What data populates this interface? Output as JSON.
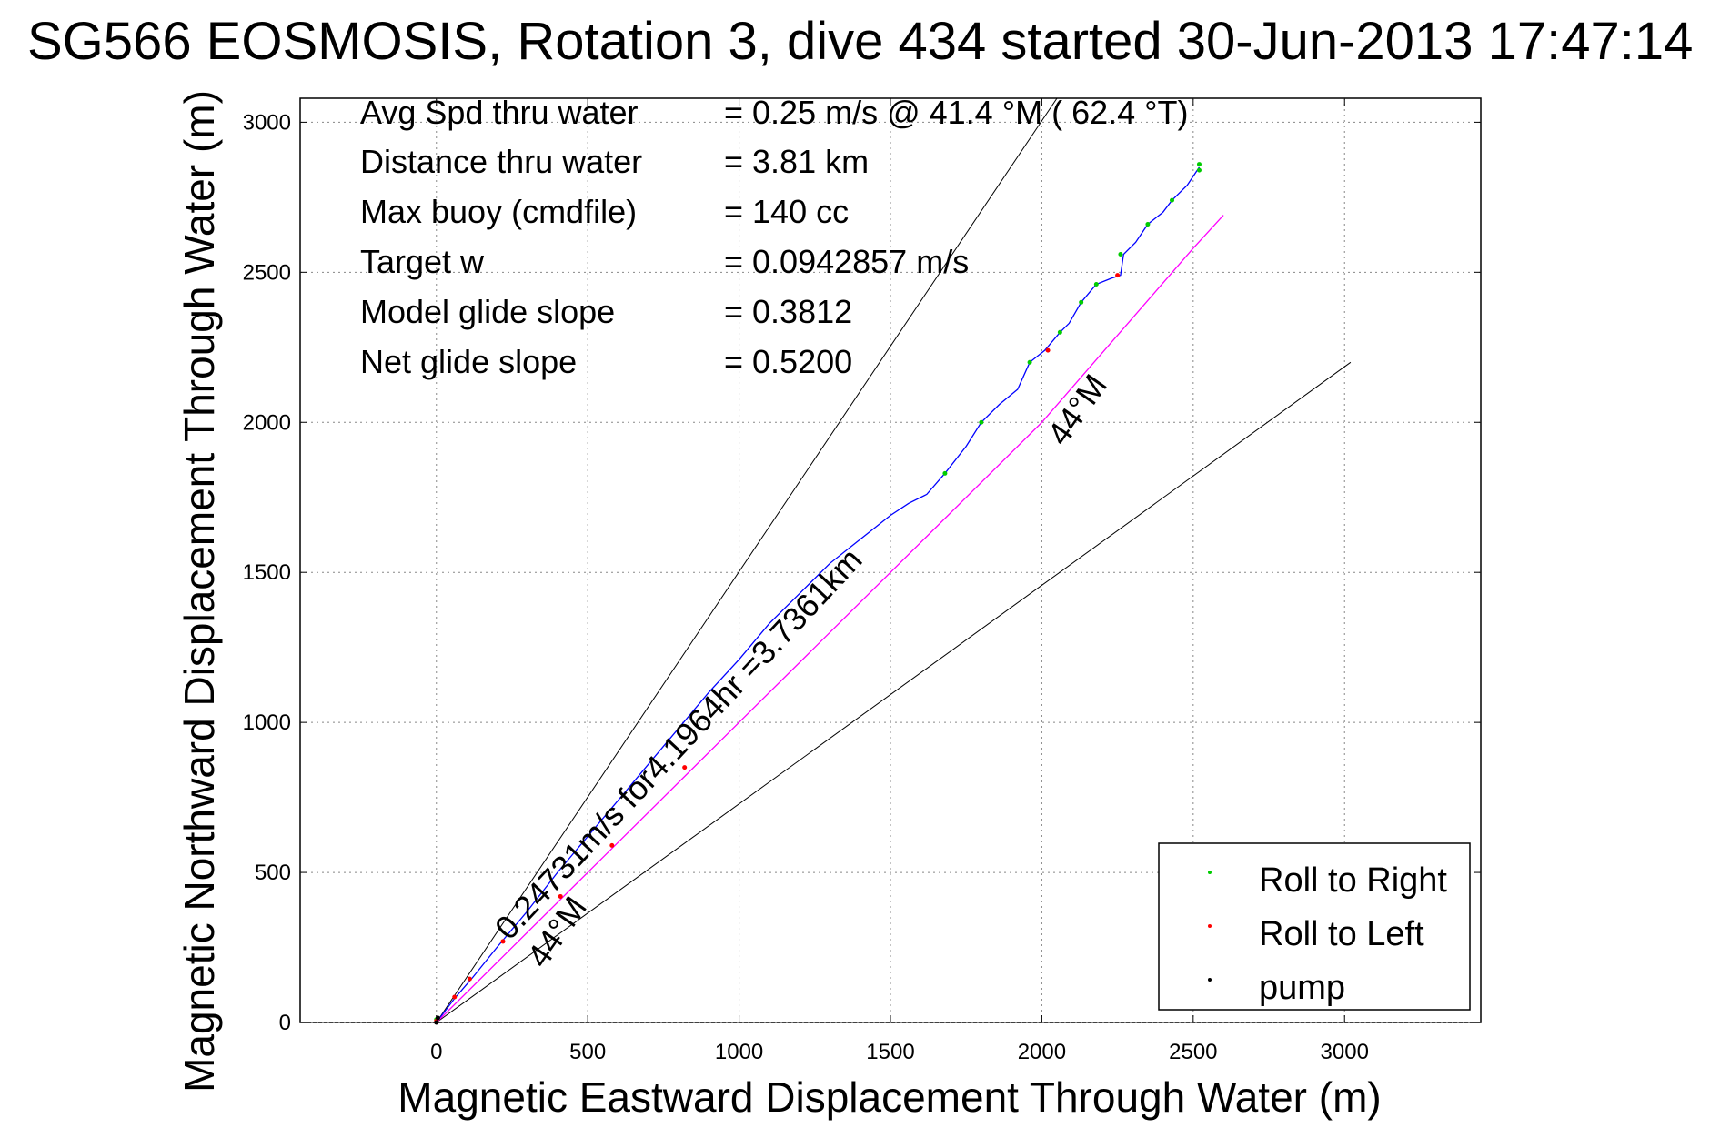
{
  "chart_data": {
    "type": "line",
    "title": "SG566 EOSMOSIS, Rotation 3, dive 434 started 30-Jun-2013 17:47:14",
    "xlabel": "Magnetic Eastward Displacement Through Water (m)",
    "ylabel": "Magnetic Northward Displacement Through Water (m)",
    "xlim": [
      -450,
      3450
    ],
    "ylim": [
      0,
      3080
    ],
    "xticks": [
      0,
      500,
      1000,
      1500,
      2000,
      2500,
      3000
    ],
    "yticks": [
      0,
      500,
      1000,
      1500,
      2000,
      2500,
      3000
    ],
    "grid": true,
    "legend_position": "bottom-right",
    "colors": {
      "track": "#0000ff",
      "model": "#ff00ff",
      "roll_right": "#00cc00",
      "roll_left": "#ff0000",
      "pump": "#000000",
      "heading_lines": "#000000"
    },
    "stats": [
      {
        "label": "Avg Spd thru water",
        "value": "=  0.25 m/s @  41.4 °M ( 62.4 °T)"
      },
      {
        "label": "Distance thru water",
        "value": "=  3.81 km"
      },
      {
        "label": "Max buoy (cmdfile)",
        "value": "= 140 cc"
      },
      {
        "label": "Target w",
        "value": "= 0.0942857 m/s"
      },
      {
        "label": "Model glide slope",
        "value": "= 0.3812"
      },
      {
        "label": "Net glide slope",
        "value": "= 0.5200"
      }
    ],
    "annotations": {
      "track_label": "0.24731m/s for4.1964hr =3.7361km",
      "heading_upper": "44°M",
      "heading_lower": "44°M"
    },
    "heading_lines": [
      {
        "name": "upper",
        "x": [
          0,
          2050
        ],
        "y": [
          0,
          3080
        ]
      },
      {
        "name": "lower",
        "x": [
          0,
          3020
        ],
        "y": [
          0,
          2200
        ]
      }
    ],
    "series": [
      {
        "name": "",
        "x": [
          0,
          60,
          120,
          200,
          300,
          400,
          500,
          600,
          700,
          800,
          900,
          1000,
          1100,
          1200,
          1300,
          1400,
          1500,
          1560,
          1620,
          1680,
          1750,
          1800,
          1860,
          1920,
          1960,
          2010,
          2060,
          2090,
          2130,
          2180,
          2230,
          2260,
          2270,
          2310,
          2350,
          2400,
          2430,
          2480,
          2520
        ],
        "y": [
          0,
          80,
          150,
          250,
          370,
          500,
          620,
          740,
          860,
          980,
          1100,
          1210,
          1330,
          1430,
          1530,
          1610,
          1690,
          1730,
          1760,
          1830,
          1920,
          2000,
          2060,
          2110,
          2200,
          2240,
          2300,
          2330,
          2400,
          2460,
          2480,
          2490,
          2560,
          2600,
          2660,
          2700,
          2740,
          2790,
          2850
        ]
      },
      {
        "name": "",
        "x": [
          0,
          500,
          1000,
          1500,
          2000,
          2500,
          2600
        ],
        "y": [
          0,
          500,
          1000,
          1500,
          2000,
          2580,
          2690
        ]
      }
    ],
    "legend": [
      {
        "label": "Roll to Right",
        "color": "#00cc00"
      },
      {
        "label": "Roll to Left",
        "color": "#ff0000"
      },
      {
        "label": "pump",
        "color": "#000000"
      }
    ],
    "roll_right_points": {
      "x": [
        0,
        1680,
        1800,
        1960,
        2060,
        2130,
        2180,
        2260,
        2350,
        2430,
        2520,
        2520
      ],
      "y": [
        10,
        1830,
        2000,
        2200,
        2300,
        2400,
        2460,
        2560,
        2660,
        2740,
        2840,
        2860
      ]
    },
    "roll_left_points": {
      "x": [
        0,
        60,
        110,
        220,
        410,
        580,
        820,
        2020,
        2250
      ],
      "y": [
        5,
        85,
        145,
        270,
        420,
        590,
        850,
        2240,
        2490
      ]
    },
    "pump_points": {
      "x": [
        0,
        5
      ],
      "y": [
        0,
        15
      ]
    }
  }
}
